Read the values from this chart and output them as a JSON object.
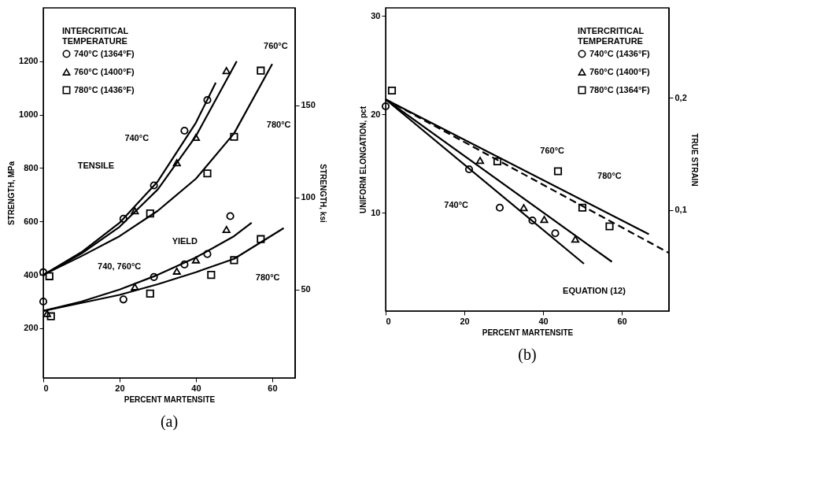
{
  "chart_data": [
    {
      "type": "scatter",
      "xlabel": "PERCENT MARTENSITE",
      "ylabel": "STRENGTH, MPa",
      "y2label": "STRENGTH, ksi",
      "legend_title": "INTERCRITICAL TEMPERATURE",
      "legend": "top left",
      "xlim": [
        0,
        66
      ],
      "ylim": [
        14,
        1400
      ],
      "xticks": [
        0,
        20,
        40,
        60
      ],
      "yticks": [
        200,
        400,
        600,
        800,
        1000,
        1200
      ],
      "y2lim": [
        2,
        203
      ],
      "y2ticks": [
        50,
        100,
        150
      ],
      "series": [
        {
          "type": "line",
          "color": "#000000",
          "line_style": "solid",
          "x": [
            0,
            10,
            20,
            30,
            40,
            45.2
          ],
          "values": [
            400,
            485,
            595,
            750,
            970,
            1120
          ]
        },
        {
          "type": "line",
          "color": "#000000",
          "line_style": "solid",
          "x": [
            0,
            10,
            20,
            30,
            40,
            50.7
          ],
          "values": [
            400,
            480,
            580,
            720,
            920,
            1200
          ]
        },
        {
          "type": "line",
          "color": "#000000",
          "line_style": "solid",
          "x": [
            0,
            10,
            20,
            30,
            40,
            50,
            60
          ],
          "values": [
            400,
            470,
            545,
            640,
            760,
            930,
            1190
          ]
        },
        {
          "type": "line",
          "color": "#000000",
          "line_style": "solid",
          "x": [
            0,
            10,
            20,
            30,
            40,
            50,
            54.6
          ],
          "values": [
            265,
            300,
            345,
            400,
            465,
            545,
            595
          ]
        },
        {
          "type": "line",
          "color": "#000000",
          "line_style": "solid",
          "x": [
            0,
            10,
            20,
            30,
            40,
            50,
            63
          ],
          "values": [
            265,
            295,
            325,
            365,
            410,
            460,
            575
          ]
        },
        {
          "name": "740°C (1364°F)",
          "marker": "circle",
          "color": "#000000",
          "x": [
            0,
            21,
            29,
            37,
            43,
            0,
            21,
            29,
            37,
            43,
            49
          ],
          "values": [
            410,
            610,
            735,
            940,
            1055,
            300,
            308,
            392,
            439,
            478,
            620
          ]
        },
        {
          "name": "760°C (1400°F)",
          "marker": "triangle",
          "color": "#000000",
          "x": [
            24,
            35,
            40,
            48,
            1,
            24,
            35,
            40,
            48
          ],
          "values": [
            640,
            820,
            915,
            1165,
            255,
            355,
            414,
            456,
            570
          ]
        },
        {
          "name": "780°C (1436°F)",
          "marker": "square",
          "color": "#000000",
          "x": [
            1.6,
            28,
            43,
            50,
            57,
            2,
            28,
            44,
            50,
            57
          ],
          "values": [
            395,
            630,
            780,
            917,
            1165,
            245,
            330,
            400,
            455,
            534
          ]
        }
      ],
      "annotations": [
        "740°C",
        "760°C",
        "780°C",
        "TENSILE",
        "YIELD",
        "740, 760°C",
        "780°C",
        "(a)"
      ]
    },
    {
      "type": "scatter",
      "xlabel": "PERCENT MARTENSITE",
      "ylabel": "UNIFORM ELONGATION, pct",
      "y2label": "TRUE STRAIN",
      "legend_title": "INTERCRITICAL TEMPERATURE",
      "legend": "top right",
      "xlim": [
        0,
        72
      ],
      "ylim": [
        0,
        30.8
      ],
      "xticks": [
        0,
        20,
        40,
        60
      ],
      "yticks": [
        10,
        20,
        30
      ],
      "y2lim": [
        0.01,
        0.28
      ],
      "y2ticks": [
        {
          "value": 0.1,
          "label": "0,1"
        },
        {
          "value": 0.2,
          "label": "0,2"
        }
      ],
      "series": [
        {
          "type": "line",
          "color": "#000000",
          "line_style": "solid",
          "x": [
            0,
            50.4
          ],
          "values": [
            21.5,
            4.8
          ]
        },
        {
          "type": "line",
          "color": "#000000",
          "line_style": "solid",
          "x": [
            0,
            57.5
          ],
          "values": [
            21.5,
            5.0
          ]
        },
        {
          "type": "line",
          "color": "#000000",
          "line_style": "solid",
          "x": [
            0,
            66.9
          ],
          "values": [
            21.5,
            7.8
          ]
        },
        {
          "type": "line",
          "color": "#000000",
          "line_style": "dashed",
          "x": [
            0,
            72
          ],
          "values": [
            21.5,
            5.9
          ]
        },
        {
          "name": "740°C (1436°F)",
          "marker": "circle",
          "color": "#000000",
          "x": [
            0,
            21.2,
            29,
            37.3,
            43.1
          ],
          "values": [
            20.8,
            14.4,
            10.5,
            9.2,
            7.9
          ]
        },
        {
          "name": "760°C (1400°F)",
          "marker": "triangle",
          "color": "#000000",
          "x": [
            24,
            35.1,
            40.3,
            48.2
          ],
          "values": [
            15.3,
            10.5,
            9.3,
            7.3
          ]
        },
        {
          "name": "780°C (1364°F)",
          "marker": "square",
          "color": "#000000",
          "x": [
            1.6,
            28.4,
            43.8,
            50,
            56.9
          ],
          "values": [
            22.4,
            15.2,
            14.2,
            10.5,
            8.6
          ]
        }
      ],
      "annotations": [
        "760°C",
        "780°C",
        "740°C",
        "EQUATION (12)",
        "(b)"
      ]
    }
  ]
}
